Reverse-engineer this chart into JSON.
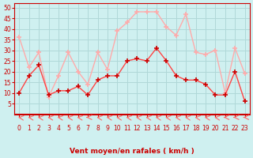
{
  "x": [
    0,
    1,
    2,
    3,
    4,
    5,
    6,
    7,
    8,
    9,
    10,
    11,
    12,
    13,
    14,
    15,
    16,
    17,
    18,
    19,
    20,
    21,
    22,
    23
  ],
  "wind_avg": [
    10,
    18,
    23,
    9,
    11,
    11,
    13,
    9,
    16,
    18,
    18,
    25,
    26,
    25,
    31,
    25,
    18,
    16,
    16,
    14,
    9,
    9,
    20,
    6
  ],
  "wind_gust": [
    36,
    22,
    29,
    8,
    18,
    29,
    20,
    14,
    29,
    21,
    39,
    43,
    48,
    48,
    48,
    41,
    37,
    47,
    29,
    28,
    30,
    10,
    31,
    19
  ],
  "xlabel": "Vent moyen/en rafales ( km/h )",
  "ylabel": "",
  "ylim": [
    0,
    52
  ],
  "xlim": [
    -0.5,
    23.5
  ],
  "yticks": [
    5,
    10,
    15,
    20,
    25,
    30,
    35,
    40,
    45,
    50
  ],
  "xticks": [
    0,
    1,
    2,
    3,
    4,
    5,
    6,
    7,
    8,
    9,
    10,
    11,
    12,
    13,
    14,
    15,
    16,
    17,
    18,
    19,
    20,
    21,
    22,
    23
  ],
  "bg_color": "#cff0f0",
  "grid_color": "#b0d8d8",
  "line_avg_color": "#ff4444",
  "line_gust_color": "#ffaaaa",
  "marker_color_avg": "#cc0000",
  "marker_color_gust": "#ff8888",
  "arrow_color": "#ff6666"
}
